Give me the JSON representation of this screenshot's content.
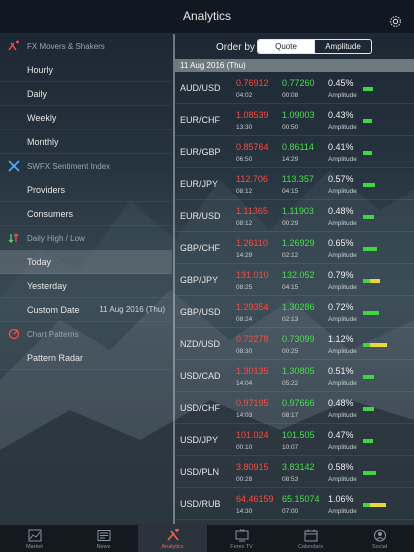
{
  "header": {
    "title": "Analytics"
  },
  "sidebar": {
    "sections": [
      {
        "title": "FX Movers & Shakers",
        "icon": "fx-movers-icon",
        "items": [
          {
            "label": "Hourly"
          },
          {
            "label": "Daily"
          },
          {
            "label": "Weekly"
          },
          {
            "label": "Monthly"
          }
        ]
      },
      {
        "title": "SWFX Sentiment Index",
        "icon": "sentiment-icon",
        "items": [
          {
            "label": "Providers"
          },
          {
            "label": "Consumers"
          }
        ]
      },
      {
        "title": "Daily High / Low",
        "icon": "high-low-icon",
        "items": [
          {
            "label": "Today"
          },
          {
            "label": "Yesterday"
          },
          {
            "label": "Custom Date",
            "value": "11 Aug 2016 (Thu)"
          }
        ]
      },
      {
        "title": "Chart Patterns",
        "icon": "chart-patterns-icon",
        "items": [
          {
            "label": "Pattern Radar"
          }
        ]
      }
    ],
    "selected": "Today"
  },
  "main": {
    "order_by_label": "Order by",
    "segments": [
      "Quote",
      "Amplitude"
    ],
    "active_segment": "Quote",
    "date": "11 Aug 2016 (Thu)",
    "amplitude_label": "Amplitude",
    "rows": [
      {
        "pair": "AUD/USD",
        "low": "0.76912",
        "low_time": "04:02",
        "high": "0.77260",
        "high_time": "00:08",
        "amp": "0.45%",
        "level": 0.41
      },
      {
        "pair": "EUR/CHF",
        "low": "1.08539",
        "low_time": "13:30",
        "high": "1.09003",
        "high_time": "00:50",
        "amp": "0.43%",
        "level": 0.39
      },
      {
        "pair": "EUR/GBP",
        "low": "0.85764",
        "low_time": "06:50",
        "high": "0.86114",
        "high_time": "14:29",
        "amp": "0.41%",
        "level": 0.37
      },
      {
        "pair": "EUR/JPY",
        "low": "112.706",
        "low_time": "08:12",
        "high": "113.357",
        "high_time": "04:15",
        "amp": "0.57%",
        "level": 0.52
      },
      {
        "pair": "EUR/USD",
        "low": "1.11365",
        "low_time": "08:12",
        "high": "1.11903",
        "high_time": "00:29",
        "amp": "0.48%",
        "level": 0.44
      },
      {
        "pair": "GBP/CHF",
        "low": "1.26110",
        "low_time": "14:29",
        "high": "1.26929",
        "high_time": "02:12",
        "amp": "0.65%",
        "level": 0.59
      },
      {
        "pair": "GBP/JPY",
        "low": "131.010",
        "low_time": "08:25",
        "high": "132.052",
        "high_time": "04:15",
        "amp": "0.79%",
        "level": 0.72
      },
      {
        "pair": "GBP/USD",
        "low": "1.29354",
        "low_time": "08:24",
        "high": "1.30286",
        "high_time": "02:13",
        "amp": "0.72%",
        "level": 0.65
      },
      {
        "pair": "NZD/USD",
        "low": "0.72278",
        "low_time": "08:30",
        "high": "0.73099",
        "high_time": "00:25",
        "amp": "1.12%",
        "level": 1.0
      },
      {
        "pair": "USD/CAD",
        "low": "1.30135",
        "low_time": "14:04",
        "high": "1.30805",
        "high_time": "05:22",
        "amp": "0.51%",
        "level": 0.46
      },
      {
        "pair": "USD/CHF",
        "low": "0.97195",
        "low_time": "14:03",
        "high": "0.97666",
        "high_time": "08:17",
        "amp": "0.48%",
        "level": 0.44
      },
      {
        "pair": "USD/JPY",
        "low": "101.024",
        "low_time": "00:10",
        "high": "101.505",
        "high_time": "10:07",
        "amp": "0.47%",
        "level": 0.43
      },
      {
        "pair": "USD/PLN",
        "low": "3.80915",
        "low_time": "00:28",
        "high": "3.83142",
        "high_time": "08:53",
        "amp": "0.58%",
        "level": 0.53
      },
      {
        "pair": "USD/RUB",
        "low": "64.46159",
        "low_time": "14:30",
        "high": "65.15074",
        "high_time": "07:00",
        "amp": "1.06%",
        "level": 0.95
      }
    ]
  },
  "tabbar": {
    "tabs": [
      {
        "label": "Market",
        "icon": "market-icon"
      },
      {
        "label": "News",
        "icon": "news-icon"
      },
      {
        "label": "Analytics",
        "icon": "analytics-icon"
      },
      {
        "label": "Forex TV",
        "icon": "forex-tv-icon"
      },
      {
        "label": "Calendars",
        "icon": "calendar-icon"
      },
      {
        "label": "Social",
        "icon": "social-icon"
      }
    ],
    "active": "Analytics"
  },
  "colors": {
    "low": "#ff4a3a",
    "high": "#45e04a",
    "bar_green": "#3fd63f",
    "bar_yellow": "#e8d83a",
    "accent": "#ff5a4a"
  }
}
